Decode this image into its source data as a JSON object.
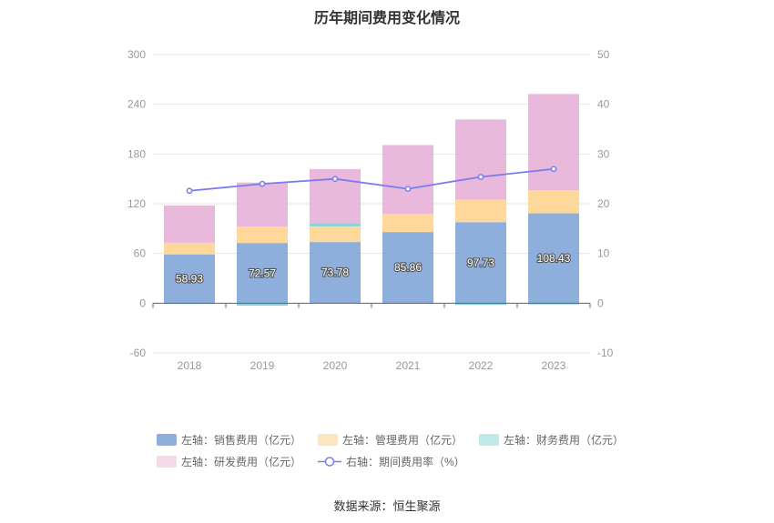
{
  "title": "历年期间费用变化情况",
  "source": "数据来源：恒生聚源",
  "colors": {
    "sales": "#8eaedb",
    "admin": "#fdd89a",
    "finance": "#7fd3d8",
    "rd": "#e8b9da",
    "rate": "#7b7bf0"
  },
  "legend": [
    {
      "label": "左轴：销售费用（亿元）",
      "color": "#8eaedb",
      "kind": "box"
    },
    {
      "label": "左轴：管理费用（亿元）",
      "color": "#fde6bf",
      "kind": "box"
    },
    {
      "label": "左轴：财务费用（亿元）",
      "color": "#bfeaea",
      "kind": "box"
    },
    {
      "label": "左轴：研发费用（亿元）",
      "color": "#f3d9ea",
      "kind": "box"
    },
    {
      "label": "右轴：期间费用率（%）",
      "color": "#7b7bf0",
      "kind": "line"
    }
  ],
  "chart_data": {
    "type": "bar",
    "stacked": true,
    "categories": [
      "2018",
      "2019",
      "2020",
      "2021",
      "2022",
      "2023"
    ],
    "series": [
      {
        "name": "左轴：销售费用（亿元）",
        "axis": "left",
        "values": [
          58.93,
          72.57,
          73.78,
          85.86,
          97.73,
          108.43
        ],
        "labels": [
          "58.93",
          "72.57",
          "73.78",
          "85.86",
          "97.73",
          "108.43"
        ]
      },
      {
        "name": "左轴：管理费用（亿元）",
        "axis": "left",
        "values": [
          14,
          20,
          19,
          22,
          27,
          28
        ]
      },
      {
        "name": "左轴：财务费用（亿元）",
        "axis": "left",
        "values": [
          -1,
          -3,
          3,
          -0.5,
          -2,
          -1.5
        ]
      },
      {
        "name": "左轴：研发费用（亿元）",
        "axis": "left",
        "values": [
          45,
          53,
          66,
          83,
          97,
          116
        ]
      },
      {
        "name": "右轴：期间费用率（%）",
        "axis": "right",
        "type": "line",
        "values": [
          22.6,
          24.0,
          25.0,
          23.0,
          25.4,
          27.0
        ]
      }
    ],
    "left_axis": {
      "min": -60,
      "max": 300,
      "ticks": [
        "-60",
        "0",
        "60",
        "120",
        "180",
        "240",
        "300"
      ]
    },
    "right_axis": {
      "min": -10,
      "max": 50,
      "ticks": [
        "-10",
        "0",
        "10",
        "20",
        "30",
        "40",
        "50"
      ]
    },
    "grid": true,
    "legend_position": "bottom"
  }
}
